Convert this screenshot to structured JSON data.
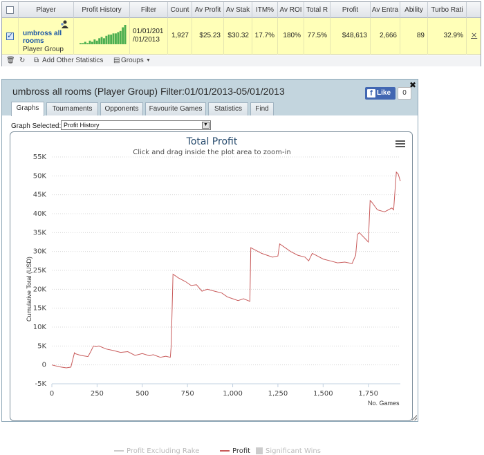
{
  "stats_table": {
    "headers": [
      "Player",
      "Profit History",
      "Filter",
      "Count",
      "Av Profit",
      "Av Stak",
      "ITM%",
      "Av ROI",
      "Total R",
      "Profit",
      "Av Entra",
      "Ability",
      "Turbo Rati"
    ],
    "row": {
      "player_name": "umbross all rooms",
      "player_type": "Player Group",
      "filter_line1": "01/01/201",
      "filter_line2": "/01/2013",
      "count": "1,927",
      "av_profit": "$25.23",
      "av_stake": "$30.32",
      "itm": "17.7%",
      "av_roi": "180%",
      "total_roi": "77.5%",
      "profit": "$48,613",
      "av_entrants": "2,666",
      "ability": "89",
      "turbo_ratio": "32.9%",
      "sparkline": [
        1,
        1,
        2,
        1,
        3,
        2,
        4,
        3,
        5,
        6,
        5,
        7,
        8,
        8,
        9,
        9,
        10,
        11,
        14,
        16
      ]
    },
    "toolbar": {
      "add_stats": "Add Other Statistics",
      "groups": "Groups"
    }
  },
  "graph_window": {
    "title": "umbross all rooms (Player Group) Filter:01/01/2013-05/01/2013",
    "fb_like": "Like",
    "fb_count": "0",
    "tabs": [
      "Graphs",
      "Tournaments",
      "Opponents",
      "Favourite Games",
      "Statistics",
      "Find"
    ],
    "active_tab": "Graphs",
    "graph_selected_label": "Graph Selected:",
    "graph_selected_value": "Profit History"
  },
  "colors": {
    "profit_line": "#c85a5a",
    "profit_excl_rake": "#cccccc",
    "significant_wins": "#cccccc",
    "title_color": "#274b6d",
    "header_bg": "#c3d5de"
  },
  "chart_data": {
    "type": "line",
    "title": "Total Profit",
    "subtitle": "Click and drag inside the plot area to zoom-in",
    "xlabel": "No. Games",
    "ylabel": "Cumulative Total (USD)",
    "xlim": [
      0,
      1927
    ],
    "ylim": [
      -5000,
      55000
    ],
    "x_ticks": [
      0,
      250,
      500,
      750,
      1000,
      1250,
      1500,
      1750
    ],
    "x_tick_labels": [
      "0",
      "250",
      "500",
      "750",
      "1,000",
      "1,250",
      "1,500",
      "1,750"
    ],
    "y_ticks": [
      -5000,
      0,
      5000,
      10000,
      15000,
      20000,
      25000,
      30000,
      35000,
      40000,
      45000,
      50000,
      55000
    ],
    "y_tick_labels": [
      "-5K",
      "0",
      "5K",
      "10K",
      "15K",
      "20K",
      "25K",
      "30K",
      "35K",
      "40K",
      "45K",
      "50K",
      "55K"
    ],
    "grid": true,
    "legend_position": "bottom",
    "series": [
      {
        "name": "Profit",
        "x": [
          0,
          40,
          80,
          105,
          125,
          128,
          160,
          200,
          215,
          230,
          245,
          260,
          300,
          340,
          380,
          420,
          460,
          500,
          540,
          560,
          600,
          630,
          655,
          660,
          670,
          700,
          740,
          770,
          800,
          830,
          860,
          900,
          940,
          970,
          1000,
          1030,
          1060,
          1095,
          1100,
          1120,
          1140,
          1160,
          1190,
          1220,
          1250,
          1260,
          1290,
          1320,
          1360,
          1400,
          1420,
          1440,
          1460,
          1500,
          1540,
          1580,
          1620,
          1660,
          1680,
          1690,
          1700,
          1730,
          1750,
          1760,
          1770,
          1800,
          1840,
          1880,
          1890,
          1905,
          1915,
          1927
        ],
        "y": [
          0,
          -500,
          -800,
          -600,
          3200,
          3000,
          2500,
          2200,
          3500,
          5000,
          4800,
          5000,
          4200,
          3800,
          3300,
          3500,
          2500,
          3000,
          2400,
          2700,
          2000,
          2300,
          2000,
          5000,
          24000,
          23000,
          22000,
          21000,
          21200,
          19500,
          20000,
          19500,
          19000,
          18000,
          17500,
          17000,
          17500,
          16800,
          31000,
          30500,
          30000,
          29500,
          29000,
          28500,
          28800,
          32000,
          31000,
          30000,
          29000,
          28500,
          27500,
          29500,
          29000,
          28000,
          27500,
          27000,
          27200,
          26800,
          29000,
          34500,
          35000,
          33500,
          32500,
          43500,
          43000,
          41000,
          40500,
          41500,
          41000,
          51000,
          50500,
          48600
        ]
      },
      {
        "name": "Profit Excluding Rake"
      },
      {
        "name": "Significant Wins"
      }
    ]
  }
}
